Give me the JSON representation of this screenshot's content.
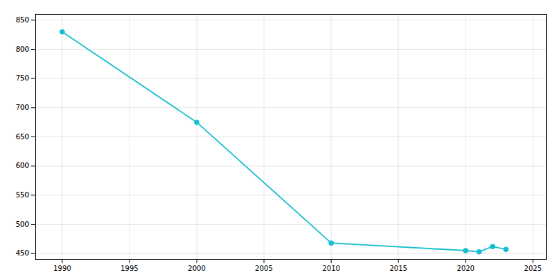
{
  "chart_data": {
    "type": "line",
    "x": [
      1990,
      2000,
      2010,
      2020,
      2021,
      2022,
      2023
    ],
    "values": [
      830,
      675,
      468,
      455,
      453,
      462,
      457
    ],
    "color": "#17BECF",
    "marker": "circle",
    "xlim": [
      1988,
      2026
    ],
    "ylim": [
      440,
      860
    ],
    "xticks": [
      1990,
      1995,
      2000,
      2005,
      2010,
      2015,
      2020,
      2025
    ],
    "yticks": [
      450,
      500,
      550,
      600,
      650,
      700,
      750,
      800,
      850
    ],
    "grid": true
  }
}
